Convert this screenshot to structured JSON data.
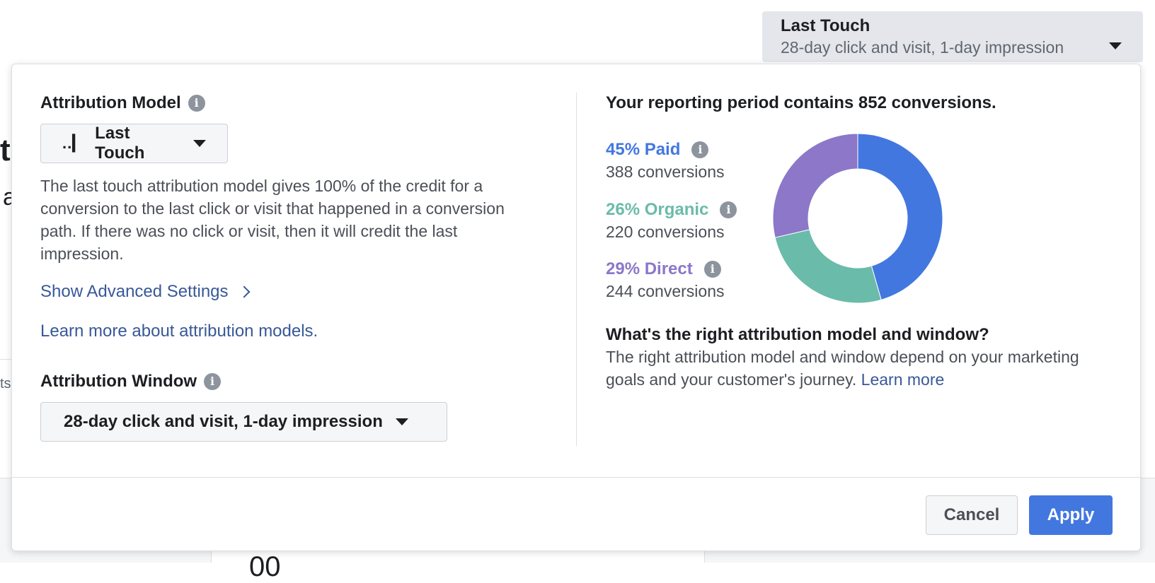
{
  "trigger": {
    "title": "Last Touch",
    "subtitle": "28-day click and visit, 1-day impression",
    "icon": "caret-down-icon"
  },
  "background": {
    "frag_t": "t",
    "frag_a": "a",
    "frag_ts": "ts",
    "frag_digits": "00"
  },
  "attribution_model": {
    "title": "Attribution Model",
    "info_icon": "info-icon",
    "selected": "Last Touch",
    "model_icon_glyph": "..▎",
    "description": "The last touch attribution model gives 100% of the credit for a conversion to the last click or visit that happened in a conversion path. If there was no click or visit, then it will credit the last impression.",
    "advanced_link": "Show Advanced Settings",
    "learn_link": "Learn more about attribution models."
  },
  "attribution_window": {
    "title": "Attribution Window",
    "selected": "28-day click and visit, 1-day impression"
  },
  "report": {
    "title": "Your reporting period contains 852 conversions.",
    "segments": [
      {
        "label": "45% Paid",
        "conversions": "388 conversions",
        "value": 388,
        "color": "#4377e0"
      },
      {
        "label": "26% Organic",
        "conversions": "220 conversions",
        "value": 220,
        "color": "#6bbbaa"
      },
      {
        "label": "29% Direct",
        "conversions": "244 conversions",
        "value": 244,
        "color": "#8c77c8"
      }
    ],
    "question_title": "What's the right attribution model and window?",
    "question_body": "The right attribution model and window depend on your marketing goals and your customer's journey.",
    "question_link": "Learn more"
  },
  "footer": {
    "cancel": "Cancel",
    "apply": "Apply"
  },
  "colors": {
    "accent": "#4377e0",
    "link": "#385898"
  }
}
